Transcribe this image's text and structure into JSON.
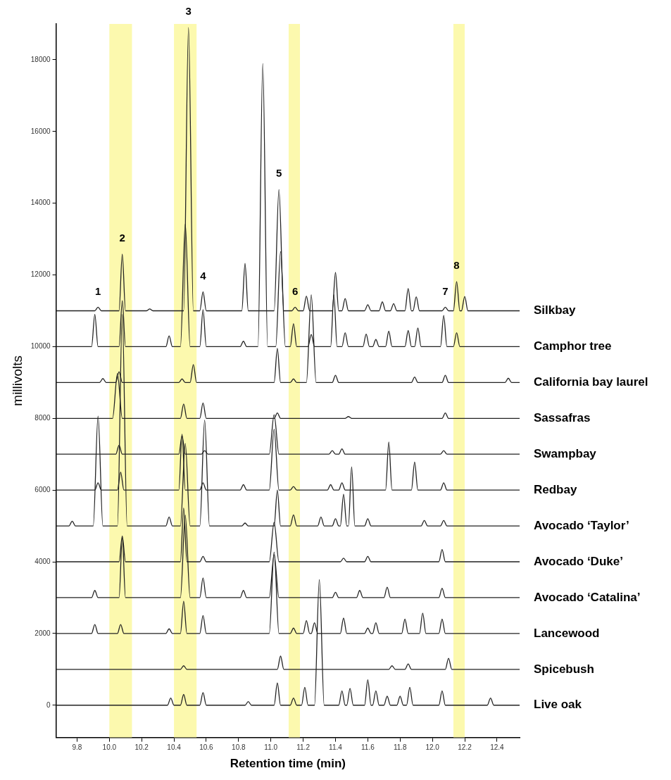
{
  "chart_data": {
    "type": "line",
    "xlabel": "Retention time (min)",
    "ylabel": "millivolts",
    "marker": "none",
    "line_style": "solid",
    "grid": false,
    "legend": false,
    "xlim": [
      9.67,
      12.54
    ],
    "ylim": [
      -900,
      19000
    ],
    "xticks": [
      {
        "value": 9.8,
        "label": "9.8"
      },
      {
        "value": 10,
        "label": "10.0"
      },
      {
        "value": 10.2,
        "label": "10.2"
      },
      {
        "value": 10.4,
        "label": "10.4"
      },
      {
        "value": 10.6,
        "label": "10.6"
      },
      {
        "value": 10.8,
        "label": "10.8"
      },
      {
        "value": 11,
        "label": "11.0"
      },
      {
        "value": 11.2,
        "label": "11.2"
      },
      {
        "value": 11.4,
        "label": "11.4"
      },
      {
        "value": 11.6,
        "label": "11.6"
      },
      {
        "value": 11.8,
        "label": "11.8"
      },
      {
        "value": 12,
        "label": "12.0"
      },
      {
        "value": 12.2,
        "label": "12.2"
      },
      {
        "value": 12.4,
        "label": "12.4"
      }
    ],
    "yticks": [
      0,
      2000,
      4000,
      6000,
      8000,
      10000,
      12000,
      14000,
      16000,
      18000
    ],
    "bands": [
      {
        "axis": "x",
        "from": 10.0,
        "to": 10.14,
        "color": "#fcf8a0"
      },
      {
        "axis": "x",
        "from": 10.4,
        "to": 10.54,
        "color": "#fcf8a0"
      },
      {
        "axis": "x",
        "from": 11.11,
        "to": 11.18,
        "color": "#fcf8a0"
      },
      {
        "axis": "x",
        "from": 12.13,
        "to": 12.2,
        "color": "#fcf8a0"
      }
    ],
    "annotations": [
      {
        "text": "1",
        "x": 9.93,
        "y": 11100
      },
      {
        "text": "2",
        "x": 10.08,
        "y": 12580
      },
      {
        "text": "3",
        "x": 10.49,
        "y": 18900
      },
      {
        "text": "4",
        "x": 10.58,
        "y": 11530
      },
      {
        "text": "5",
        "x": 11.05,
        "y": 14380
      },
      {
        "text": "6",
        "x": 11.15,
        "y": 11100
      },
      {
        "text": "7",
        "x": 12.08,
        "y": 11100
      },
      {
        "text": "8",
        "x": 12.15,
        "y": 11810
      }
    ],
    "series": [
      {
        "name": "Silkbay",
        "color": "#222222",
        "x": [
          9.67,
          9.91,
          9.93,
          9.95,
          10.06,
          10.08,
          10.1,
          10.23,
          10.25,
          10.27,
          10.46,
          10.49,
          10.52,
          10.56,
          10.58,
          10.6,
          10.82,
          10.84,
          10.86,
          11.02,
          11.05,
          11.08,
          11.13,
          11.15,
          11.17,
          11.2,
          11.22,
          11.24,
          11.38,
          11.4,
          11.42,
          11.44,
          11.46,
          11.48,
          11.58,
          11.6,
          11.62,
          11.67,
          11.69,
          11.71,
          11.74,
          11.76,
          11.78,
          11.83,
          11.85,
          11.87,
          11.88,
          11.9,
          11.92,
          12.06,
          12.08,
          12.1,
          12.13,
          12.15,
          12.17,
          12.18,
          12.2,
          12.22,
          12.54
        ],
        "values": [
          11000,
          11000,
          11100,
          11000,
          11000,
          12580,
          11000,
          11000,
          11050,
          11000,
          11000,
          18900,
          11000,
          11000,
          11530,
          11000,
          11000,
          12320,
          11000,
          11000,
          14380,
          11000,
          11000,
          11100,
          11000,
          11000,
          11410,
          11000,
          11000,
          12070,
          11000,
          11000,
          11340,
          11000,
          11000,
          11170,
          11000,
          11000,
          11250,
          11000,
          11000,
          11200,
          11000,
          11000,
          11620,
          11000,
          11000,
          11390,
          11000,
          11000,
          11100,
          11000,
          11000,
          11810,
          11000,
          11000,
          11400,
          11000,
          11000
        ]
      },
      {
        "name": "Camphor tree",
        "color": "#222222",
        "x": [
          9.67,
          9.89,
          9.91,
          9.93,
          10.06,
          10.08,
          10.1,
          10.35,
          10.37,
          10.39,
          10.44,
          10.47,
          10.5,
          10.56,
          10.58,
          10.6,
          10.81,
          10.83,
          10.85,
          10.92,
          10.95,
          10.98,
          11.03,
          11.06,
          11.09,
          11.12,
          11.14,
          11.16,
          11.23,
          11.25,
          11.27,
          11.37,
          11.39,
          11.41,
          11.44,
          11.46,
          11.48,
          11.57,
          11.59,
          11.61,
          11.63,
          11.65,
          11.67,
          11.71,
          11.73,
          11.75,
          11.83,
          11.85,
          11.87,
          11.89,
          11.91,
          11.93,
          12.05,
          12.07,
          12.09,
          12.13,
          12.15,
          12.17,
          12.54
        ],
        "values": [
          10000,
          10000,
          10900,
          10000,
          10000,
          11280,
          10000,
          10000,
          10300,
          10000,
          10000,
          13420,
          10000,
          10000,
          11030,
          10000,
          10000,
          10150,
          10000,
          10000,
          17900,
          10000,
          10000,
          12650,
          10000,
          10000,
          10640,
          10000,
          10000,
          10340,
          10000,
          10000,
          11450,
          10000,
          10000,
          10390,
          10000,
          10000,
          10350,
          10000,
          10000,
          10200,
          10000,
          10000,
          10430,
          10000,
          10000,
          10450,
          10000,
          10000,
          10520,
          10000,
          10000,
          10870,
          10000,
          10000,
          10390,
          10000,
          10000
        ]
      },
      {
        "name": "California bay laurel",
        "color": "#222222",
        "x": [
          9.67,
          9.94,
          9.96,
          9.98,
          10.04,
          10.06,
          10.08,
          10.43,
          10.45,
          10.47,
          10.5,
          10.52,
          10.54,
          11.02,
          11.04,
          11.06,
          11.12,
          11.14,
          11.16,
          11.22,
          11.25,
          11.28,
          11.38,
          11.4,
          11.42,
          11.87,
          11.89,
          11.91,
          12.06,
          12.08,
          12.1,
          12.45,
          12.47,
          12.49,
          12.54
        ],
        "values": [
          9000,
          9000,
          9110,
          9000,
          9000,
          9300,
          9000,
          9000,
          9100,
          9000,
          9000,
          9500,
          9000,
          9000,
          9950,
          9000,
          9000,
          9100,
          9000,
          9000,
          11450,
          9000,
          9000,
          9200,
          9000,
          9000,
          9150,
          9000,
          9000,
          9200,
          9000,
          9000,
          9120,
          9000,
          9000
        ]
      },
      {
        "name": "Sassafras",
        "color": "#222222",
        "x": [
          9.67,
          10.02,
          10.05,
          10.08,
          10.44,
          10.46,
          10.48,
          10.56,
          10.58,
          10.6,
          11.02,
          11.04,
          11.06,
          11.46,
          11.48,
          11.5,
          12.06,
          12.08,
          12.1,
          12.54
        ],
        "values": [
          8000,
          8000,
          9250,
          8000,
          8000,
          8400,
          8000,
          8000,
          8430,
          8000,
          8000,
          8150,
          8000,
          8000,
          8050,
          8000,
          8000,
          8150,
          8000,
          8000
        ]
      },
      {
        "name": "Swampbay",
        "color": "#222222",
        "x": [
          9.67,
          10.04,
          10.06,
          10.08,
          10.43,
          10.45,
          10.47,
          10.57,
          10.59,
          10.61,
          10.99,
          11.02,
          11.05,
          11.36,
          11.38,
          11.4,
          11.42,
          11.44,
          11.46,
          12.05,
          12.07,
          12.09,
          12.54
        ],
        "values": [
          7000,
          7000,
          7250,
          7000,
          7000,
          7510,
          7000,
          7000,
          7100,
          7000,
          7000,
          8100,
          7000,
          7000,
          7100,
          7000,
          7000,
          7150,
          7000,
          7000,
          7100,
          7000,
          7000
        ]
      },
      {
        "name": "Redbay",
        "color": "#222222",
        "x": [
          9.67,
          9.91,
          9.93,
          9.95,
          10.05,
          10.07,
          10.09,
          10.43,
          10.45,
          10.47,
          10.56,
          10.58,
          10.6,
          10.81,
          10.83,
          10.85,
          10.99,
          11.02,
          11.05,
          11.12,
          11.14,
          11.16,
          11.35,
          11.37,
          11.39,
          11.42,
          11.44,
          11.46,
          11.71,
          11.73,
          11.75,
          11.87,
          11.89,
          11.91,
          12.05,
          12.07,
          12.09,
          12.54
        ],
        "values": [
          6000,
          6000,
          6200,
          6000,
          6000,
          6500,
          6000,
          6000,
          7560,
          6000,
          6000,
          6200,
          6000,
          6000,
          6150,
          6000,
          6000,
          7700,
          6000,
          6000,
          6100,
          6000,
          6000,
          6150,
          6000,
          6000,
          6200,
          6000,
          6000,
          7340,
          6000,
          6000,
          6780,
          6000,
          6000,
          6200,
          6000,
          6000
        ]
      },
      {
        "name": "Avocado ‘Taylor’",
        "color": "#222222",
        "x": [
          9.67,
          9.75,
          9.77,
          9.79,
          9.9,
          9.93,
          9.96,
          10.05,
          10.08,
          10.11,
          10.35,
          10.37,
          10.39,
          10.44,
          10.47,
          10.5,
          10.56,
          10.59,
          10.62,
          10.82,
          10.84,
          10.86,
          11.02,
          11.04,
          11.06,
          11.12,
          11.14,
          11.16,
          11.29,
          11.31,
          11.33,
          11.38,
          11.4,
          11.42,
          11.43,
          11.45,
          11.47,
          11.48,
          11.5,
          11.52,
          11.58,
          11.6,
          11.62,
          11.93,
          11.95,
          11.97,
          12.05,
          12.07,
          12.09,
          12.54
        ],
        "values": [
          5000,
          5000,
          5130,
          5000,
          5000,
          8060,
          5000,
          5000,
          10900,
          5000,
          5000,
          5250,
          5000,
          5000,
          7300,
          5000,
          5000,
          7950,
          5000,
          5000,
          5080,
          5000,
          5000,
          6000,
          5000,
          5000,
          5310,
          5000,
          5000,
          5250,
          5000,
          5000,
          5200,
          5000,
          5000,
          5880,
          5000,
          5000,
          6650,
          5000,
          5000,
          5200,
          5000,
          5000,
          5150,
          5000,
          5000,
          5150,
          5000,
          5000
        ]
      },
      {
        "name": "Avocado ‘Duke’",
        "color": "#222222",
        "x": [
          9.67,
          10.06,
          10.08,
          10.1,
          10.44,
          10.46,
          10.48,
          10.56,
          10.58,
          10.6,
          10.99,
          11.02,
          11.05,
          11.43,
          11.45,
          11.47,
          11.58,
          11.6,
          11.62,
          12.04,
          12.06,
          12.08,
          12.54
        ],
        "values": [
          4000,
          4000,
          4720,
          4000,
          4000,
          5500,
          4000,
          4000,
          4150,
          4000,
          4000,
          5100,
          4000,
          4000,
          4100,
          4000,
          4000,
          4150,
          4000,
          4000,
          4340,
          4000,
          4000
        ]
      },
      {
        "name": "Avocado ‘Catalina’",
        "color": "#222222",
        "x": [
          9.67,
          9.89,
          9.91,
          9.93,
          10.06,
          10.08,
          10.1,
          10.44,
          10.47,
          10.5,
          10.56,
          10.58,
          10.6,
          10.81,
          10.83,
          10.85,
          10.99,
          11.02,
          11.05,
          11.38,
          11.4,
          11.42,
          11.53,
          11.55,
          11.57,
          11.7,
          11.72,
          11.74,
          12.04,
          12.06,
          12.08,
          12.54
        ],
        "values": [
          3000,
          3000,
          3200,
          3000,
          3000,
          4680,
          3000,
          3000,
          5300,
          3000,
          3000,
          3550,
          3000,
          3000,
          3200,
          3000,
          3000,
          4200,
          3000,
          3000,
          3150,
          3000,
          3000,
          3200,
          3000,
          3000,
          3290,
          3000,
          3000,
          3260,
          3000,
          3000
        ]
      },
      {
        "name": "Lancewood",
        "color": "#222222",
        "x": [
          9.67,
          9.89,
          9.91,
          9.93,
          10.05,
          10.07,
          10.09,
          10.35,
          10.37,
          10.39,
          10.44,
          10.46,
          10.48,
          10.56,
          10.58,
          10.6,
          10.99,
          11.02,
          11.05,
          11.12,
          11.14,
          11.16,
          11.2,
          11.22,
          11.24,
          11.25,
          11.27,
          11.29,
          11.43,
          11.45,
          11.47,
          11.58,
          11.6,
          11.62,
          11.63,
          11.65,
          11.67,
          11.81,
          11.83,
          11.85,
          11.92,
          11.94,
          11.96,
          12.04,
          12.06,
          12.08,
          12.54
        ],
        "values": [
          2000,
          2000,
          2250,
          2000,
          2000,
          2250,
          2000,
          2000,
          2130,
          2000,
          2000,
          2900,
          2000,
          2000,
          2500,
          2000,
          2000,
          4270,
          2000,
          2000,
          2150,
          2000,
          2000,
          2360,
          2000,
          2000,
          2300,
          2000,
          2000,
          2430,
          2000,
          2000,
          2150,
          2000,
          2000,
          2300,
          2000,
          2000,
          2400,
          2000,
          2000,
          2570,
          2000,
          2000,
          2400,
          2000,
          2000
        ]
      },
      {
        "name": "Spicebush",
        "color": "#222222",
        "x": [
          9.67,
          10.44,
          10.46,
          10.48,
          11.04,
          11.06,
          11.08,
          11.73,
          11.75,
          11.77,
          11.83,
          11.85,
          11.87,
          12.08,
          12.1,
          12.12,
          12.54
        ],
        "values": [
          1000,
          1000,
          1100,
          1000,
          1000,
          1370,
          1000,
          1000,
          1100,
          1000,
          1000,
          1150,
          1000,
          1000,
          1310,
          1000,
          1000
        ]
      },
      {
        "name": "Live oak",
        "color": "#222222",
        "x": [
          9.67,
          10.36,
          10.38,
          10.4,
          10.44,
          10.46,
          10.48,
          10.56,
          10.58,
          10.6,
          10.84,
          10.86,
          10.88,
          11.02,
          11.04,
          11.06,
          11.12,
          11.14,
          11.16,
          11.19,
          11.21,
          11.23,
          11.27,
          11.3,
          11.33,
          11.42,
          11.44,
          11.46,
          11.47,
          11.49,
          11.51,
          11.58,
          11.6,
          11.62,
          11.63,
          11.65,
          11.67,
          11.7,
          11.72,
          11.74,
          11.78,
          11.8,
          11.82,
          11.84,
          11.86,
          11.88,
          12.04,
          12.06,
          12.08,
          12.34,
          12.36,
          12.38,
          12.54
        ],
        "values": [
          0,
          0,
          200,
          0,
          0,
          300,
          0,
          0,
          350,
          0,
          0,
          100,
          0,
          0,
          620,
          0,
          0,
          200,
          0,
          0,
          500,
          0,
          0,
          3500,
          0,
          0,
          400,
          0,
          0,
          470,
          0,
          0,
          710,
          0,
          0,
          400,
          0,
          0,
          250,
          0,
          0,
          250,
          0,
          0,
          500,
          0,
          0,
          400,
          0,
          0,
          200,
          0,
          0
        ]
      }
    ]
  }
}
